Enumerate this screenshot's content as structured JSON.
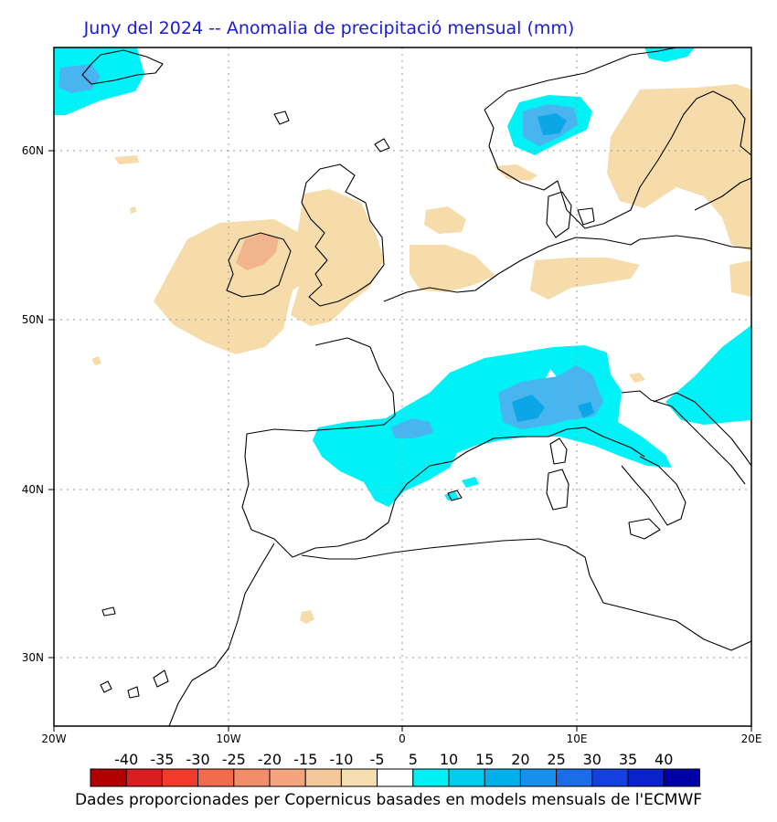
{
  "title": "Juny del 2024 -- Anomalia de precipitació mensual (mm)",
  "credit": "Dades proporcionades per Copernicus basades en models mensuals de l'ECMWF",
  "axes": {
    "lon_labels": [
      "20W",
      "10W",
      "0",
      "10E",
      "20E"
    ],
    "lat_labels": [
      "60N",
      "50N",
      "40N",
      "30N"
    ]
  },
  "colorbar": {
    "labels": [
      "-40",
      "-35",
      "-30",
      "-25",
      "-20",
      "-15",
      "-10",
      "-5",
      "5",
      "10",
      "15",
      "20",
      "25",
      "30",
      "35",
      "40"
    ],
    "colors": [
      "#b00000",
      "#d81e1e",
      "#f03a2a",
      "#f26b4c",
      "#f28d6a",
      "#f4a57e",
      "#f5c89a",
      "#f5dfb0",
      "#ffffff",
      "#00f0f4",
      "#00cdee",
      "#00b0ea",
      "#1890ee",
      "#1b6ce8",
      "#1540e0",
      "#0a22cc",
      "#0000a8"
    ]
  },
  "legend_colors": {
    "dry_weak": "#f5dcaa",
    "dry_moderate": "#f2b48c",
    "wet_weak": "#00f2f6",
    "wet_moderate": "#48b4f0",
    "wet_strong": "#0aa6e6",
    "coast": "#000000"
  }
}
